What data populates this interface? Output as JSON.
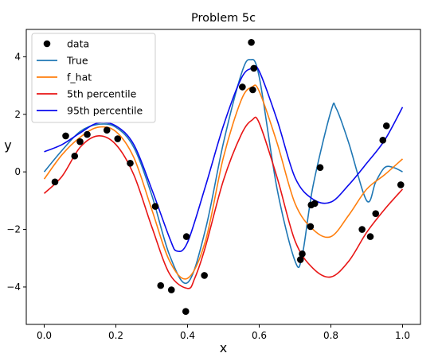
{
  "chart_data": {
    "type": "line",
    "title": "Problem 5c",
    "xlabel": "x",
    "ylabel": "y",
    "xlim": [
      -0.05,
      1.05
    ],
    "ylim": [
      -5.3,
      4.95
    ],
    "xticks": [
      0.0,
      0.2,
      0.4,
      0.6,
      0.8,
      1.0
    ],
    "xtick_labels": [
      "0.0",
      "0.2",
      "0.4",
      "0.6",
      "0.8",
      "1.0"
    ],
    "yticks": [
      -4,
      -2,
      0,
      2,
      4
    ],
    "ytick_labels": [
      "−4",
      "−2",
      "0",
      "2",
      "4"
    ],
    "grid": false,
    "legend_position": "upper-left",
    "legend": [
      {
        "label": "data",
        "kind": "marker",
        "color": "#000000"
      },
      {
        "label": "True",
        "kind": "line",
        "color": "#1f77b4"
      },
      {
        "label": "f_hat",
        "kind": "line",
        "color": "#ff7f0e"
      },
      {
        "label": "5th percentile",
        "kind": "line",
        "color": "#e81515"
      },
      {
        "label": "95th percentile",
        "kind": "line",
        "color": "#0a0aee"
      }
    ],
    "points": {
      "name": "data",
      "color": "#000000",
      "x": [
        0.03,
        0.06,
        0.085,
        0.1,
        0.12,
        0.175,
        0.205,
        0.24,
        0.31,
        0.325,
        0.355,
        0.395,
        0.397,
        0.447,
        0.553,
        0.578,
        0.582,
        0.585,
        0.715,
        0.72,
        0.743,
        0.745,
        0.755,
        0.77,
        0.887,
        0.91,
        0.925,
        0.945,
        0.955,
        0.995
      ],
      "y": [
        -0.35,
        1.25,
        0.55,
        1.05,
        1.3,
        1.45,
        1.15,
        0.3,
        -1.2,
        -3.95,
        -4.1,
        -4.85,
        -2.25,
        -3.6,
        2.95,
        4.5,
        2.85,
        3.6,
        -3.05,
        -2.85,
        -1.9,
        -1.15,
        -1.1,
        0.15,
        -2.0,
        -2.25,
        -1.45,
        1.1,
        1.6,
        -0.45
      ]
    },
    "series": [
      {
        "name": "True",
        "color": "#1f77b4",
        "x": [
          0.0,
          0.05,
          0.1,
          0.15,
          0.2,
          0.25,
          0.3,
          0.35,
          0.4,
          0.45,
          0.5,
          0.55,
          0.575,
          0.6,
          0.65,
          0.7,
          0.72,
          0.75,
          0.8,
          0.815,
          0.85,
          0.9,
          0.925,
          0.95,
          0.975,
          1.0
        ],
        "y": [
          0.0,
          0.75,
          1.4,
          1.65,
          1.55,
          0.85,
          -0.8,
          -2.9,
          -3.85,
          -2.0,
          1.0,
          3.4,
          3.9,
          3.3,
          -0.6,
          -3.1,
          -2.9,
          -0.5,
          2.1,
          2.2,
          1.0,
          -1.0,
          -0.35,
          0.15,
          0.15,
          0.0
        ]
      },
      {
        "name": "f_hat",
        "color": "#ff7f0e",
        "x": [
          0.0,
          0.05,
          0.1,
          0.15,
          0.2,
          0.25,
          0.3,
          0.35,
          0.4,
          0.45,
          0.5,
          0.55,
          0.58,
          0.6,
          0.65,
          0.7,
          0.75,
          0.8,
          0.85,
          0.9,
          0.95,
          1.0
        ],
        "y": [
          -0.25,
          0.6,
          1.2,
          1.55,
          1.4,
          0.5,
          -1.3,
          -3.1,
          -3.7,
          -2.4,
          0.5,
          2.5,
          2.95,
          2.8,
          1.0,
          -1.1,
          -2.0,
          -2.25,
          -1.5,
          -0.6,
          -0.1,
          0.45
        ]
      },
      {
        "name": "5th percentile",
        "color": "#e81515",
        "x": [
          0.0,
          0.05,
          0.1,
          0.15,
          0.2,
          0.25,
          0.3,
          0.35,
          0.4,
          0.42,
          0.45,
          0.5,
          0.55,
          0.58,
          0.6,
          0.65,
          0.7,
          0.75,
          0.8,
          0.85,
          0.9,
          0.95,
          1.0
        ],
        "y": [
          -0.75,
          -0.15,
          0.85,
          1.25,
          0.95,
          -0.1,
          -1.9,
          -3.55,
          -4.05,
          -3.7,
          -2.6,
          -0.3,
          1.3,
          1.8,
          1.7,
          -0.2,
          -2.4,
          -3.35,
          -3.65,
          -3.1,
          -2.1,
          -1.3,
          -0.6
        ]
      },
      {
        "name": "95th percentile",
        "color": "#0a0aee",
        "x": [
          0.0,
          0.05,
          0.1,
          0.15,
          0.2,
          0.25,
          0.3,
          0.35,
          0.37,
          0.4,
          0.45,
          0.5,
          0.55,
          0.58,
          0.6,
          0.65,
          0.7,
          0.75,
          0.8,
          0.85,
          0.9,
          0.95,
          1.0
        ],
        "y": [
          0.7,
          0.95,
          1.35,
          1.7,
          1.6,
          0.95,
          -0.6,
          -2.3,
          -2.75,
          -2.45,
          -0.5,
          1.6,
          3.25,
          3.6,
          3.5,
          1.8,
          -0.2,
          -0.95,
          -1.05,
          -0.45,
          0.3,
          1.1,
          2.25
        ]
      }
    ]
  }
}
